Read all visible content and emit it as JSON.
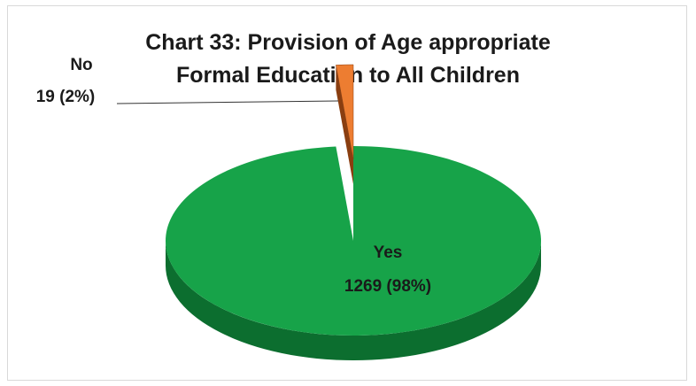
{
  "chart_data": {
    "type": "pie",
    "style": "3d",
    "title": "Chart 33: Provision of Age appropriate Formal Education to All Children",
    "title_lines": [
      "Chart 33: Provision of Age appropriate",
      "Formal Education to All Children"
    ],
    "categories": [
      "Yes",
      "No"
    ],
    "values": [
      1269,
      19
    ],
    "percent_labels": [
      "98%",
      "2%"
    ],
    "labels": [
      {
        "name": "Yes",
        "value_text": "1269 (98%)"
      },
      {
        "name": "No",
        "value_text": "19 (2%)"
      }
    ],
    "colors": {
      "Yes": "#17a349",
      "Yes_side": "#0c6e2f",
      "No": "#ed7d31",
      "No_side": "#8a3e10"
    },
    "legend": "none",
    "exploded_slice": "No"
  }
}
